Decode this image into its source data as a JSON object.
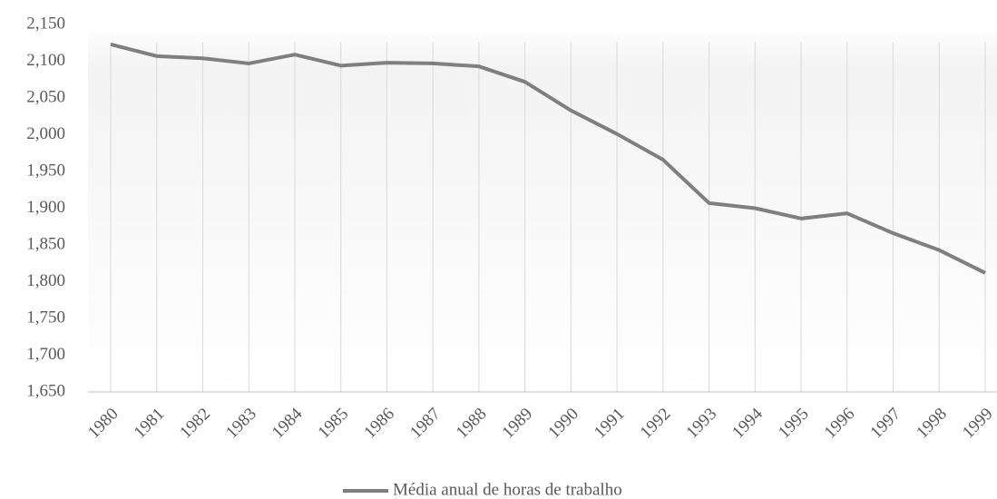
{
  "chart_data": {
    "type": "line",
    "categories": [
      "1980",
      "1981",
      "1982",
      "1983",
      "1984",
      "1985",
      "1986",
      "1987",
      "1988",
      "1989",
      "1990",
      "1991",
      "1992",
      "1993",
      "1994",
      "1995",
      "1996",
      "1997",
      "1998",
      "1999"
    ],
    "series": [
      {
        "name": "Média anual de horas de trabalho",
        "color": "#7f7f7f",
        "values": [
          2123,
          2107,
          2104,
          2097,
          2109,
          2094,
          2098,
          2097,
          2093,
          2072,
          2033,
          2001,
          1966,
          1907,
          1900,
          1886,
          1893,
          1866,
          1843,
          1812
        ]
      }
    ],
    "ylim": [
      1650,
      2150
    ],
    "yticks": [
      {
        "value": 1650,
        "label": "1,650"
      },
      {
        "value": 1700,
        "label": "1,700"
      },
      {
        "value": 1750,
        "label": "1,750"
      },
      {
        "value": 1800,
        "label": "1,800"
      },
      {
        "value": 1850,
        "label": "1,850"
      },
      {
        "value": 1900,
        "label": "1,900"
      },
      {
        "value": 1950,
        "label": "1,950"
      },
      {
        "value": 2000,
        "label": "2,000"
      },
      {
        "value": 2050,
        "label": "2,050"
      },
      {
        "value": 2100,
        "label": "2,100"
      },
      {
        "value": 2150,
        "label": "2,150"
      }
    ],
    "legend": "bottom"
  }
}
